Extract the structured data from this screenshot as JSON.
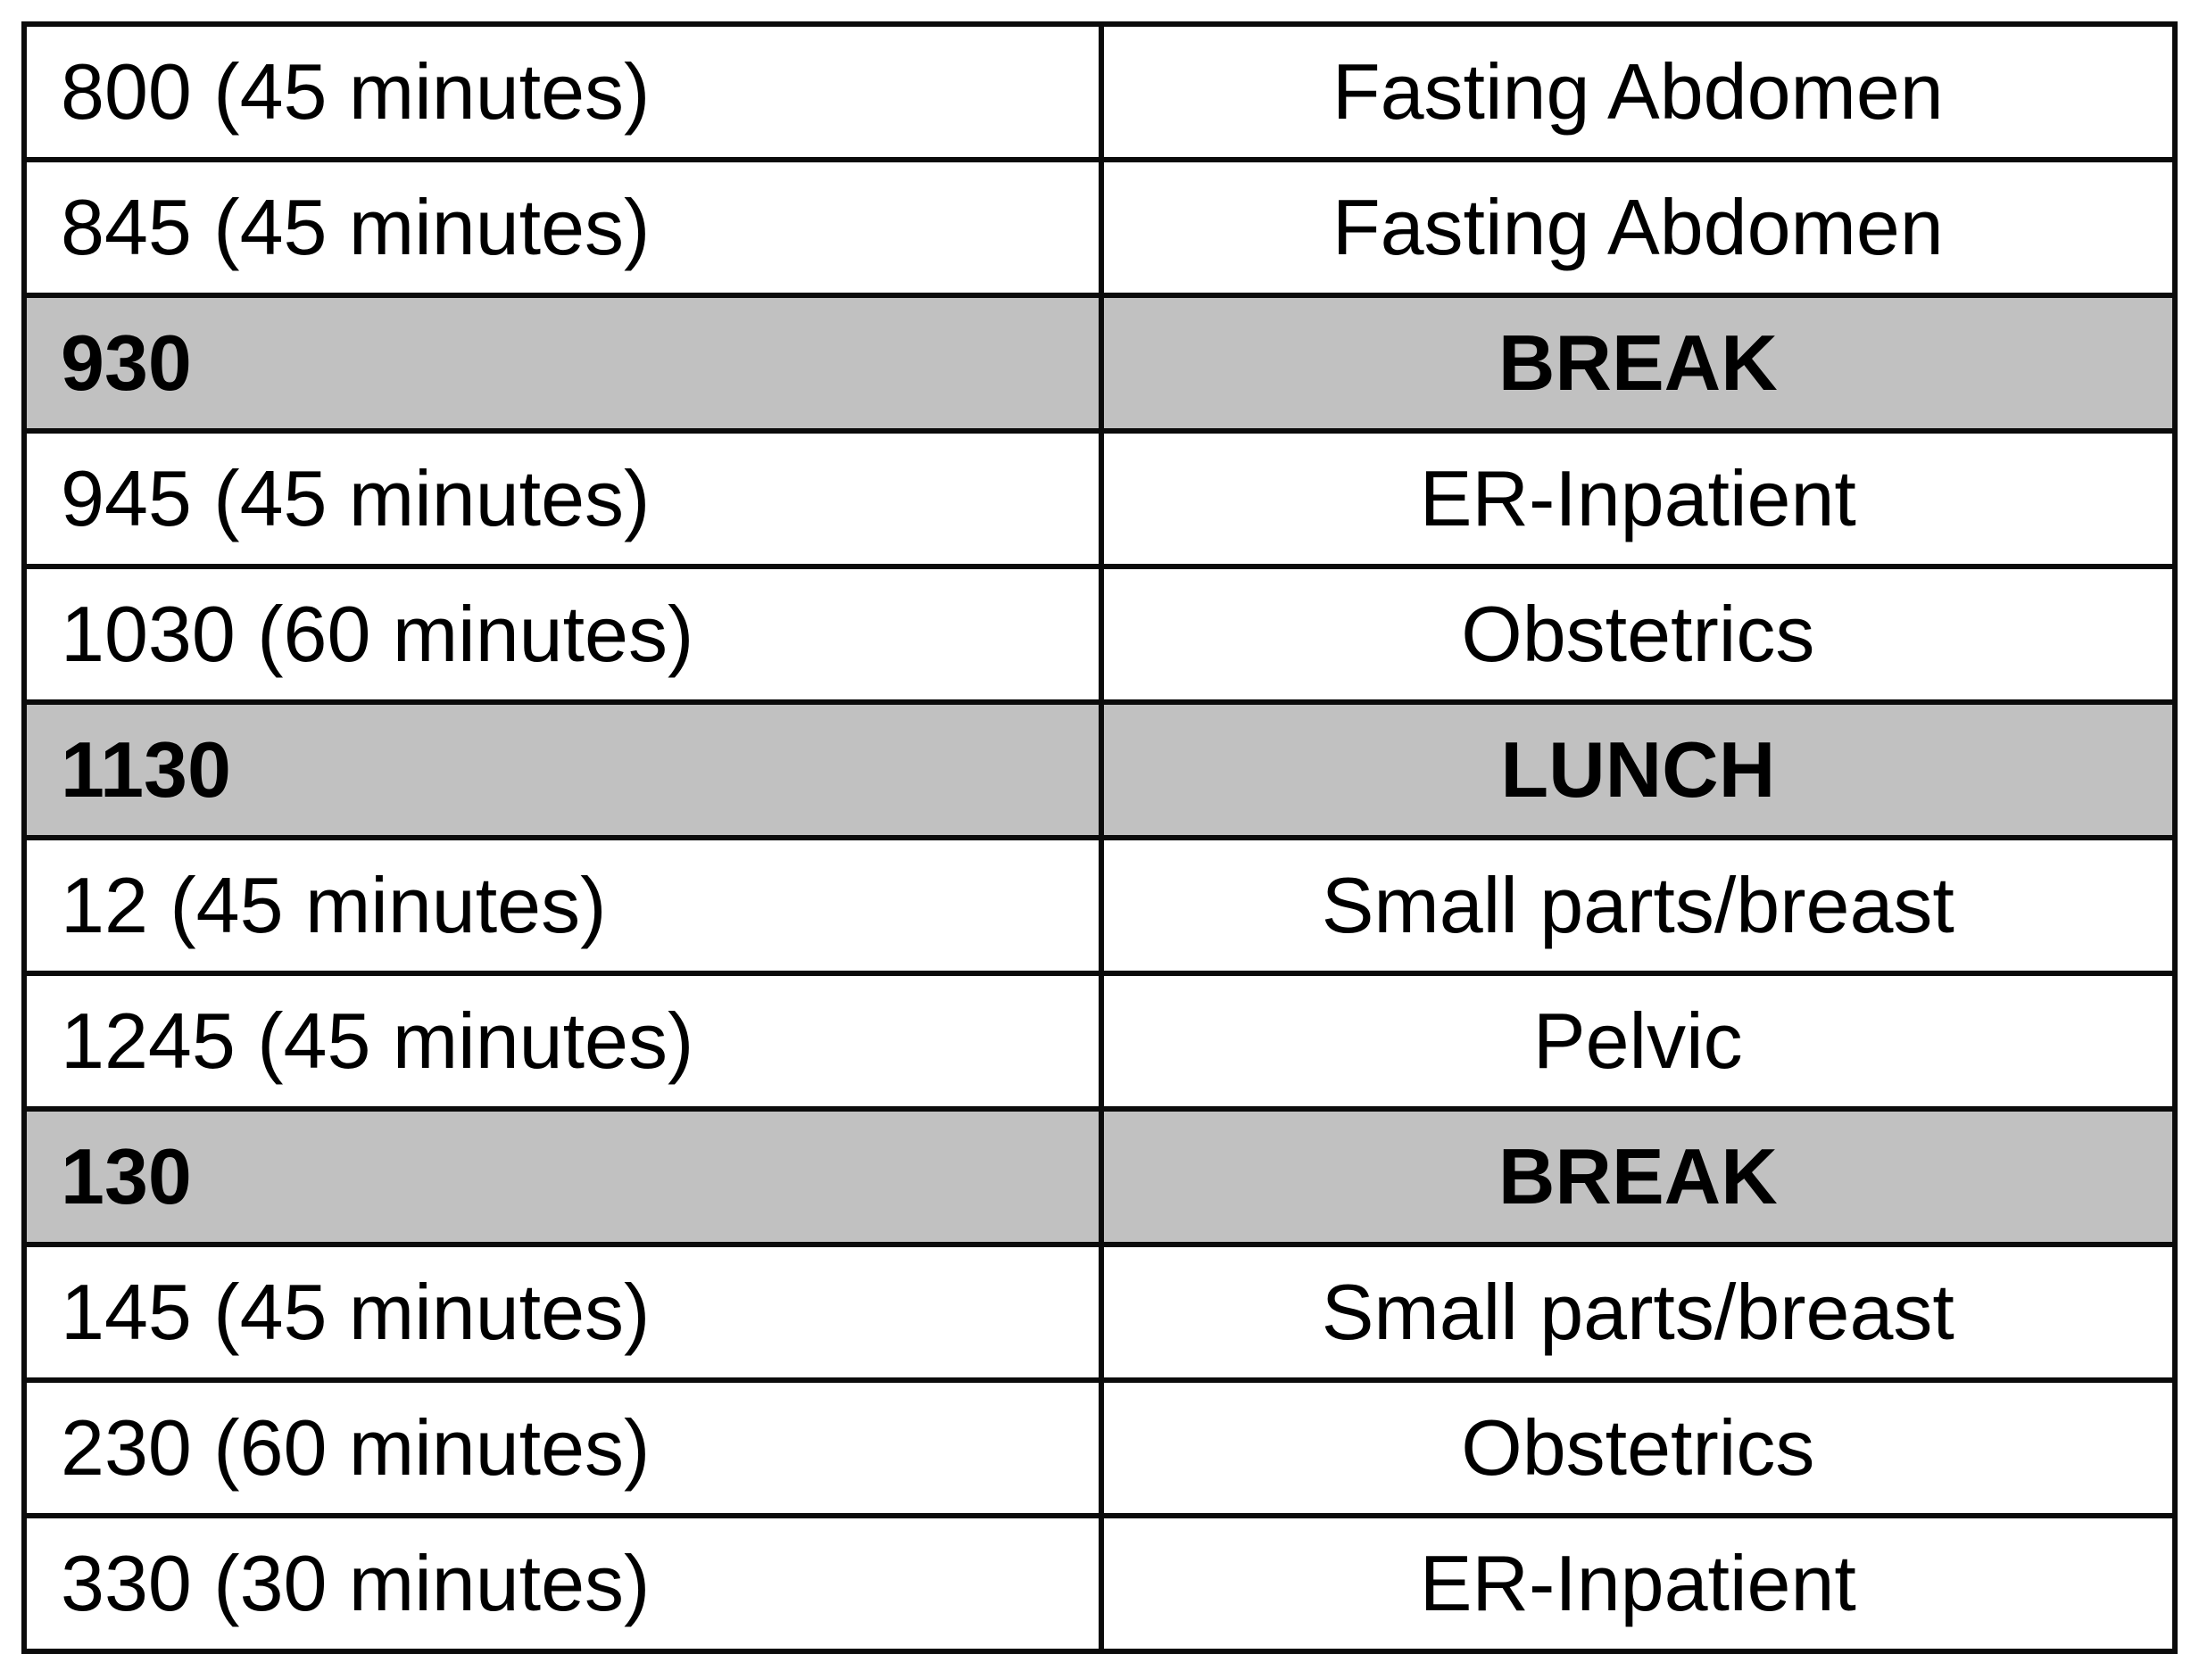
{
  "document": {
    "type": "daily-ultrasound-schedule-table",
    "columns": [
      "time",
      "activity"
    ]
  },
  "rows": [
    {
      "time": "800 (45 minutes)",
      "activity": "Fasting Abdomen",
      "type": "normal"
    },
    {
      "time": "845 (45 minutes)",
      "activity": "Fasting Abdomen",
      "type": "normal"
    },
    {
      "time": "930",
      "activity": "BREAK",
      "type": "break"
    },
    {
      "time": "945 (45 minutes)",
      "activity": "ER-Inpatient",
      "type": "normal"
    },
    {
      "time": "1030 (60 minutes)",
      "activity": "Obstetrics",
      "type": "normal"
    },
    {
      "time": "1130",
      "activity": "LUNCH",
      "type": "break"
    },
    {
      "time": "12 (45 minutes)",
      "activity": "Small parts/breast",
      "type": "normal"
    },
    {
      "time": "1245 (45 minutes)",
      "activity": "Pelvic",
      "type": "normal"
    },
    {
      "time": "130",
      "activity": "BREAK",
      "type": "break"
    },
    {
      "time": "145 (45 minutes)",
      "activity": "Small parts/breast",
      "type": "normal"
    },
    {
      "time": "230 (60 minutes)",
      "activity": "Obstetrics",
      "type": "normal"
    },
    {
      "time": "330 (30 minutes)",
      "activity": "ER-Inpatient",
      "type": "normal"
    }
  ],
  "colors": {
    "break_row_bg": "#c1c1c1",
    "border": "#0b0b0b",
    "text": "#000000",
    "page_bg": "#ffffff"
  }
}
